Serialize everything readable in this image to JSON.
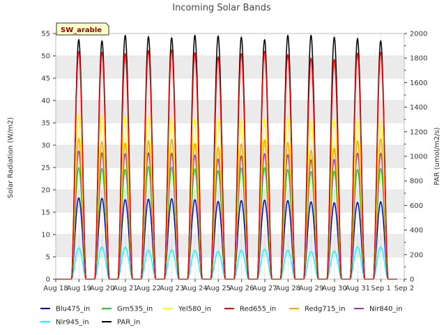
{
  "chart_data": {
    "type": "line",
    "title": "Incoming Solar Bands",
    "badge": "SW_arable",
    "ylabel": "Solar Radiation (W/m2)",
    "y2label": "PAR (umol/m2/s)",
    "ylim": [
      0,
      55
    ],
    "y2lim": [
      0,
      2000
    ],
    "yticks": [
      "0",
      "5",
      "10",
      "15",
      "20",
      "25",
      "30",
      "35",
      "40",
      "45",
      "50",
      "55"
    ],
    "y2ticks": [
      "0",
      "200",
      "400",
      "600",
      "800",
      "1000",
      "1200",
      "1400",
      "1600",
      "1800",
      "2000"
    ],
    "xlim": [
      0,
      15
    ],
    "xticks": [
      "Aug 18",
      "Aug 19",
      "Aug 20",
      "Aug 21",
      "Aug 22",
      "Aug 23",
      "Aug 24",
      "Aug 25",
      "Aug 26",
      "Aug 27",
      "Aug 28",
      "Aug 29",
      "Aug 30",
      "Aug 31",
      "Sep 1",
      "Sep 2"
    ],
    "day_start": 1,
    "day_count": 14,
    "series": [
      {
        "name": "Blu475_in",
        "color": "#0000cc",
        "axis": "left",
        "peaks": [
          18.2,
          18.1,
          17.8,
          17.9,
          18.0,
          17.8,
          17.4,
          17.6,
          17.7,
          17.6,
          17.3,
          17.1,
          17.2,
          17.3
        ]
      },
      {
        "name": "Grn535_in",
        "color": "#22cc22",
        "axis": "left",
        "peaks": [
          25.0,
          24.8,
          24.6,
          25.2,
          25.1,
          24.7,
          24.3,
          24.9,
          25.0,
          24.6,
          24.1,
          24.2,
          24.6,
          24.8
        ]
      },
      {
        "name": "Yel580_in",
        "color": "#ffff00",
        "axis": "left",
        "peaks": [
          37.0,
          36.8,
          36.5,
          36.4,
          36.3,
          36.1,
          35.9,
          36.0,
          36.0,
          36.2,
          35.9,
          35.7,
          35.6,
          35.5
        ]
      },
      {
        "name": "Red655_in",
        "color": "#ff0000",
        "axis": "left",
        "peaks": [
          51.0,
          50.8,
          50.5,
          51.2,
          51.3,
          50.7,
          49.8,
          50.5,
          51.0,
          50.3,
          49.5,
          49.2,
          50.6,
          50.8
        ]
      },
      {
        "name": "Redg715_in",
        "color": "#ffa500",
        "axis": "left",
        "peaks": [
          31.5,
          30.8,
          30.5,
          31.0,
          31.3,
          30.4,
          29.5,
          30.3,
          31.2,
          30.6,
          28.8,
          29.3,
          31.0,
          31.4
        ]
      },
      {
        "name": "Nir840_in",
        "color": "#9933cc",
        "axis": "left",
        "peaks": [
          28.7,
          28.3,
          28.1,
          28.3,
          28.2,
          27.8,
          26.9,
          27.6,
          28.1,
          27.9,
          26.7,
          26.8,
          28.2,
          28.2
        ]
      },
      {
        "name": "Nir945_in",
        "color": "#00ffff",
        "axis": "left",
        "peaks": [
          7.0,
          7.2,
          7.2,
          6.5,
          6.6,
          6.4,
          6.2,
          6.5,
          6.7,
          6.5,
          6.2,
          6.3,
          7.2,
          7.2
        ]
      },
      {
        "name": "PAR_in",
        "color": "#000000",
        "axis": "right",
        "peaks": [
          1950,
          1940,
          1985,
          1975,
          1965,
          1985,
          1980,
          1970,
          1950,
          1985,
          1985,
          1970,
          1960,
          1940
        ]
      }
    ]
  }
}
